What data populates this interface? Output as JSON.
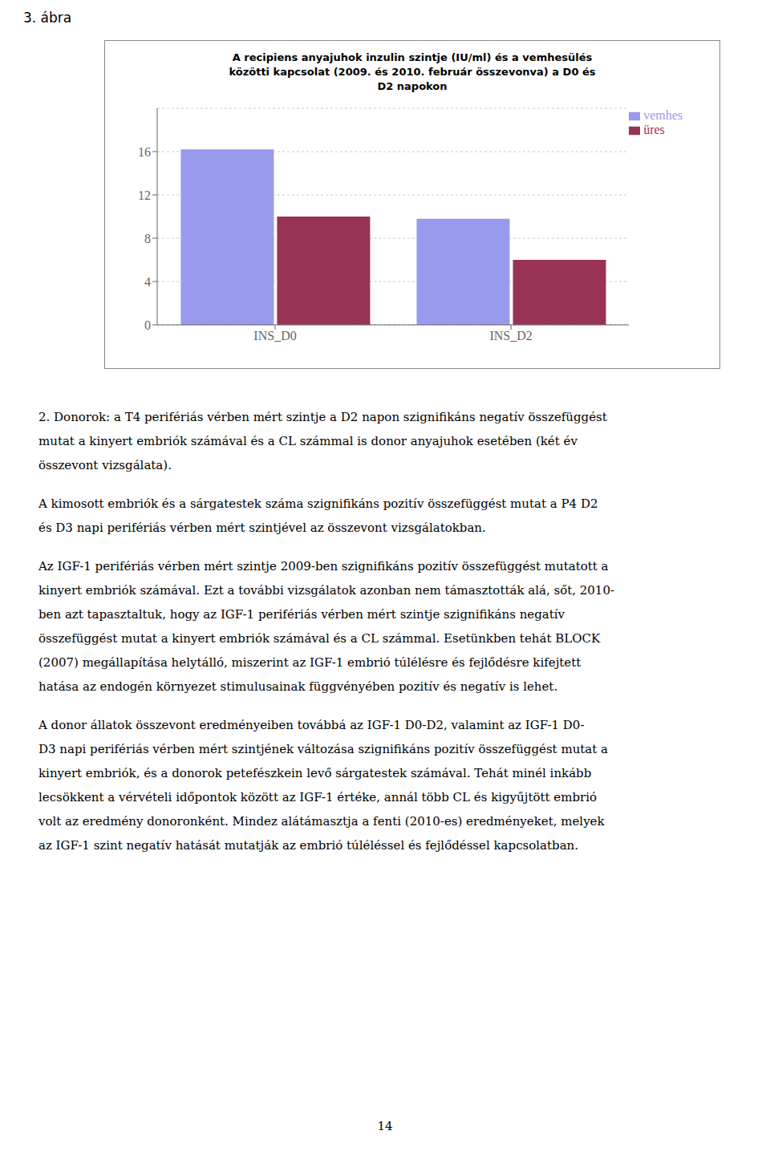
{
  "chart_data": {
    "type": "bar",
    "title": "A recipiens anyajuhok inzulin szintje (IU/ml) és a vemhesülés\nközötti kapcsolat (2009. és 2010. február összevonva) a D0 és\nD2 napokon",
    "categories": [
      "INS_D0",
      "INS_D2"
    ],
    "series": [
      {
        "name": "vemhes",
        "color": "#9999EE",
        "values": [
          16.2,
          9.8
        ]
      },
      {
        "name": "üres",
        "color": "#993355",
        "values": [
          10.0,
          6.0
        ]
      }
    ],
    "ylim": [
      0,
      20
    ],
    "yticks": [
      0,
      4,
      8,
      12,
      16
    ],
    "grid": true,
    "legend": "upper right",
    "annotations": [
      [
        "3. ábra"
      ],
      [
        "2. Donorok: a T4 perifériás vérben mért szintje a D2 napon szignifikáns negatív összefüggést",
        "mutat a kinyert embriók számával és a CL számmal is donor anyajuhok esetében (két év",
        "összevont vizsgálata)."
      ],
      [
        "A kimosott embriók és a sárgatestek száma szignifikáns pozitív összefüggést mutat a P4 D2",
        "és D3 napi perifériás vérben mért szintjével az összevont vizsgálatokban."
      ],
      [
        "Az IGF-1 perifériás vérben mért szintje 2009-ben szignifikáns pozitív összefüggést mutatott a",
        "kinyert embriók számával. Ezt a további vizsgálatok azonban nem támasztották alá, sőt, 2010-",
        "ben azt tapasztaltuk, hogy az IGF-1 perifériás vérben mért szintje szignifikáns negatív",
        "összefüggést mutat a kinyert embriók számával és a CL számmal. Esetünkben tehát BLOCK",
        "(2007) megállapítása helytálló, miszerint az IGF-1 embrió túlélésre és fejlődésre kifejtett",
        "hatása az endogén környezet stimulusainak függvényében pozitív és negatív is lehet."
      ],
      [
        "A donor állatok összevont eredményeiben továbbá az IGF-1 D0-D2, valamint az IGF-1 D0-",
        "D3 napi perifériás vérben mért szintjének változása szignifikáns pozitív összefüggést mutat a",
        "kinyert embriók, és a donorok petefészkein levő sárgatestek számával. Tehát minél inkább",
        "lecsökkent a vérvételi időpontok között az IGF-1 értéke, annál több CL és kigyűjtött embrió",
        "volt az eredmény donoronként. Mindez alátámasztja a fenti (2010-es) eredményeket, melyek",
        "az IGF-1 szint negatív hatását mutatják az embrió túléléssel és fejlődéssel kapcsolatban."
      ],
      [
        "14"
      ]
    ]
  }
}
